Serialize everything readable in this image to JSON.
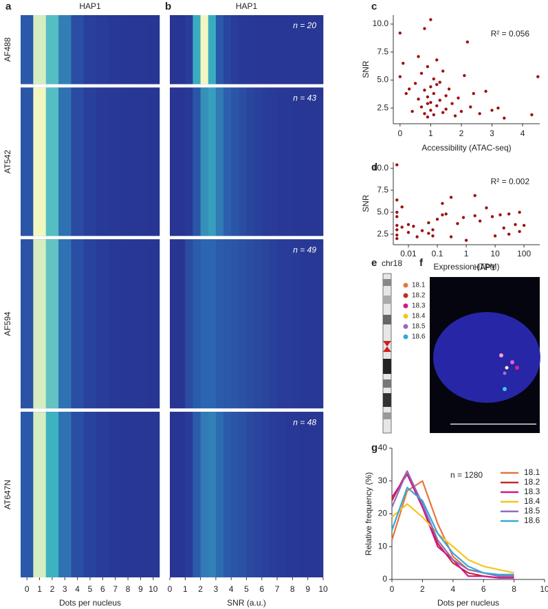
{
  "chart_data": [
    {
      "type": "heatmap",
      "panel": "a",
      "title": "HAP1",
      "x_label": "Dots per nucleus",
      "x": [
        0,
        1,
        2,
        3,
        4,
        5,
        6,
        7,
        8,
        9,
        10
      ],
      "xlim": [
        -0.5,
        10.5
      ],
      "xticks": [
        0,
        1,
        2,
        3,
        4,
        5,
        6,
        7,
        8,
        9,
        10
      ],
      "colormap": [
        "#283593",
        "#2c63b0",
        "#3db5c2",
        "#f2f7c0"
      ],
      "rows": [
        {
          "name": "AF488",
          "values": [
            0.1,
            0.36,
            0.27,
            0.17,
            0.07,
            0.03,
            0.02,
            0.01,
            0.005,
            0.003,
            0.002
          ]
        },
        {
          "name": "AT542",
          "values": [
            0.09,
            0.38,
            0.27,
            0.15,
            0.06,
            0.03,
            0.015,
            0.01,
            0.005,
            0.003,
            0.002
          ]
        },
        {
          "name": "AF594",
          "values": [
            0.08,
            0.36,
            0.28,
            0.15,
            0.07,
            0.035,
            0.02,
            0.01,
            0.006,
            0.004,
            0.002
          ]
        },
        {
          "name": "AT647N",
          "values": [
            0.1,
            0.36,
            0.25,
            0.15,
            0.07,
            0.035,
            0.02,
            0.01,
            0.006,
            0.004,
            0.003
          ]
        }
      ]
    },
    {
      "type": "heatmap",
      "panel": "b",
      "title": "HAP1",
      "x_label": "SNR (a.u.)",
      "bins": [
        0,
        0.5,
        1,
        1.5,
        2,
        2.5,
        3,
        3.5,
        4,
        4.5,
        5,
        5.5,
        6,
        6.5,
        7,
        7.5,
        8,
        8.5,
        9,
        9.5,
        10
      ],
      "xlim": [
        0,
        10
      ],
      "xticks": [
        0,
        1,
        2,
        3,
        4,
        5,
        6,
        7,
        8,
        9,
        10
      ],
      "colormap": [
        "#283593",
        "#2c63b0",
        "#3db5c2",
        "#f2f7c0"
      ],
      "rows": [
        {
          "n": 20,
          "n_label": "n = 20",
          "values": [
            0,
            0,
            0.02,
            0.22,
            0.35,
            0.22,
            0.09,
            0.04,
            0.02,
            0.01,
            0.01,
            0.005,
            0.005,
            0.005,
            0.005,
            0.005,
            0.005,
            0.005,
            0.005,
            0.005
          ]
        },
        {
          "n": 43,
          "n_label": "n = 43",
          "values": [
            0,
            0,
            0.01,
            0.08,
            0.18,
            0.2,
            0.15,
            0.11,
            0.08,
            0.06,
            0.04,
            0.03,
            0.02,
            0.015,
            0.01,
            0.01,
            0.005,
            0.005,
            0.005,
            0.005
          ]
        },
        {
          "n": 49,
          "n_label": "n = 49",
          "values": [
            0,
            0,
            0.06,
            0.1,
            0.12,
            0.12,
            0.1,
            0.09,
            0.08,
            0.07,
            0.06,
            0.05,
            0.04,
            0.03,
            0.02,
            0.02,
            0.015,
            0.01,
            0.01,
            0.01
          ]
        },
        {
          "n": 48,
          "n_label": "n = 48",
          "values": [
            0,
            0,
            0.02,
            0.1,
            0.15,
            0.16,
            0.13,
            0.1,
            0.08,
            0.07,
            0.05,
            0.04,
            0.03,
            0.02,
            0.015,
            0.01,
            0.01,
            0.005,
            0.005,
            0.005
          ]
        }
      ]
    },
    {
      "type": "scatter",
      "panel": "c",
      "x_label": "Accessibility (ATAC-seq)",
      "y_label": "SNR",
      "annotation": "R² = 0.056",
      "color": "#a01010",
      "xlim": [
        -0.22,
        4.56
      ],
      "xticks": [
        0,
        1,
        2,
        3,
        4
      ],
      "ylim": [
        1.1,
        10.8
      ],
      "yticks": [
        2.5,
        {
          "value": 5,
          "label": "5.0"
        },
        7.5,
        {
          "value": 10,
          "label": "10.0"
        }
      ],
      "x": [
        0,
        0.1,
        0,
        0.2,
        0.4,
        0.5,
        0.6,
        0.6,
        0.7,
        0.7,
        0.8,
        0.8,
        0.8,
        0.9,
        0.9,
        0.9,
        1.0,
        1.0,
        1.0,
        1.0,
        1.1,
        1.1,
        1.1,
        1.2,
        1.2,
        1.3,
        1.3,
        1.4,
        1.4,
        1.5,
        1.5,
        1.6,
        1.7,
        1.8,
        1.9,
        2.0,
        2.1,
        2.2,
        2.3,
        2.4,
        2.6,
        2.8,
        3.0,
        3.2,
        3.4,
        4.3,
        4.5,
        0.3,
        1.2,
        0.9
      ],
      "y": [
        9.2,
        6.5,
        5.3,
        3.8,
        2.2,
        4.7,
        7.1,
        3.3,
        2.6,
        5.6,
        9.6,
        4.1,
        2.0,
        3.5,
        6.2,
        1.7,
        10.4,
        4.4,
        3.0,
        2.3,
        5.1,
        3.8,
        1.9,
        6.8,
        2.7,
        4.8,
        3.2,
        2.1,
        5.8,
        3.6,
        2.4,
        4.2,
        2.9,
        1.8,
        3.4,
        2.2,
        5.4,
        8.4,
        2.6,
        3.8,
        2.0,
        4.0,
        2.3,
        2.5,
        1.6,
        1.9,
        5.3,
        4.2,
        4.6,
        2.9
      ]
    },
    {
      "type": "scatter",
      "panel": "d",
      "x_label": "Expression (TPM)",
      "y_label": "SNR",
      "annotation": "R² = 0.002",
      "color": "#a01010",
      "xscale": "log",
      "xlim": [
        0.003,
        350
      ],
      "xticks": [
        0.01,
        0.1,
        1,
        10,
        100
      ],
      "ylim": [
        1.3,
        10.7
      ],
      "yticks": [
        2.5,
        {
          "value": 5,
          "label": "5.0"
        },
        7.5,
        {
          "value": 10,
          "label": "10.0"
        }
      ],
      "x": [
        0.004,
        0.004,
        0.004,
        0.004,
        0.004,
        0.004,
        0.004,
        0.004,
        0.006,
        0.006,
        0.01,
        0.01,
        0.015,
        0.02,
        0.03,
        0.05,
        0.05,
        0.07,
        0.07,
        0.1,
        0.15,
        0.15,
        0.2,
        0.3,
        0.3,
        0.5,
        0.8,
        1,
        2,
        2,
        3,
        5,
        8,
        10,
        15,
        20,
        30,
        30,
        50,
        70,
        70,
        100
      ],
      "y": [
        10.4,
        6.4,
        5.0,
        4.5,
        3.5,
        3.0,
        2.4,
        2.0,
        3.3,
        5.6,
        2.7,
        3.6,
        3.4,
        2.2,
        2.9,
        3.8,
        2.6,
        3.0,
        2.3,
        4.2,
        6.0,
        4.7,
        4.8,
        6.7,
        2.2,
        3.7,
        4.4,
        1.8,
        6.9,
        4.6,
        4.0,
        5.5,
        4.5,
        2.3,
        4.7,
        3.2,
        4.8,
        2.5,
        3.6,
        5.0,
        2.8,
        3.5
      ]
    },
    {
      "type": "line",
      "panel": "g",
      "x_label": "Dots per nucleus",
      "y_label": "Relative frequency (%)",
      "annotation": "n = 1280",
      "xlim": [
        0,
        10
      ],
      "xticks": [
        0,
        2,
        4,
        6,
        8,
        10
      ],
      "ylim": [
        0,
        40
      ],
      "yticks": [
        0,
        10,
        20,
        30,
        40
      ],
      "x": [
        0,
        1,
        2,
        3,
        4,
        5,
        6,
        7,
        8
      ],
      "series": [
        {
          "name": "18.1",
          "color": "#e8743b",
          "values": [
            12,
            27,
            30,
            17,
            7,
            3,
            2,
            1,
            1
          ]
        },
        {
          "name": "18.2",
          "color": "#c62828",
          "values": [
            24,
            33,
            22,
            11,
            5,
            2,
            1,
            0.5,
            0.5
          ]
        },
        {
          "name": "18.3",
          "color": "#d0198a",
          "values": [
            25,
            32,
            22,
            10,
            6,
            1,
            1,
            0.5,
            0.5
          ]
        },
        {
          "name": "18.4",
          "color": "#f5c518",
          "values": [
            19,
            23,
            19,
            14,
            10,
            6,
            4,
            3,
            2
          ]
        },
        {
          "name": "18.5",
          "color": "#8e6bbf",
          "values": [
            22,
            33,
            23,
            12,
            6,
            3,
            2,
            1,
            1
          ]
        },
        {
          "name": "18.6",
          "color": "#33a9d6",
          "values": [
            15,
            28,
            24,
            14,
            8,
            4,
            2,
            1.5,
            1.5
          ]
        }
      ]
    }
  ],
  "chromosome": {
    "panel": "e",
    "label": "chr18",
    "legend": [
      {
        "label": "18.1",
        "color": "#e8743b"
      },
      {
        "label": "18.2",
        "color": "#c62828"
      },
      {
        "label": "18.3",
        "color": "#d0198a"
      },
      {
        "label": "18.4",
        "color": "#f5c518"
      },
      {
        "label": "18.5",
        "color": "#8e6bbf"
      },
      {
        "label": "18.6",
        "color": "#33a9d6"
      }
    ]
  },
  "image": {
    "panel": "f",
    "title": "HAP1"
  }
}
